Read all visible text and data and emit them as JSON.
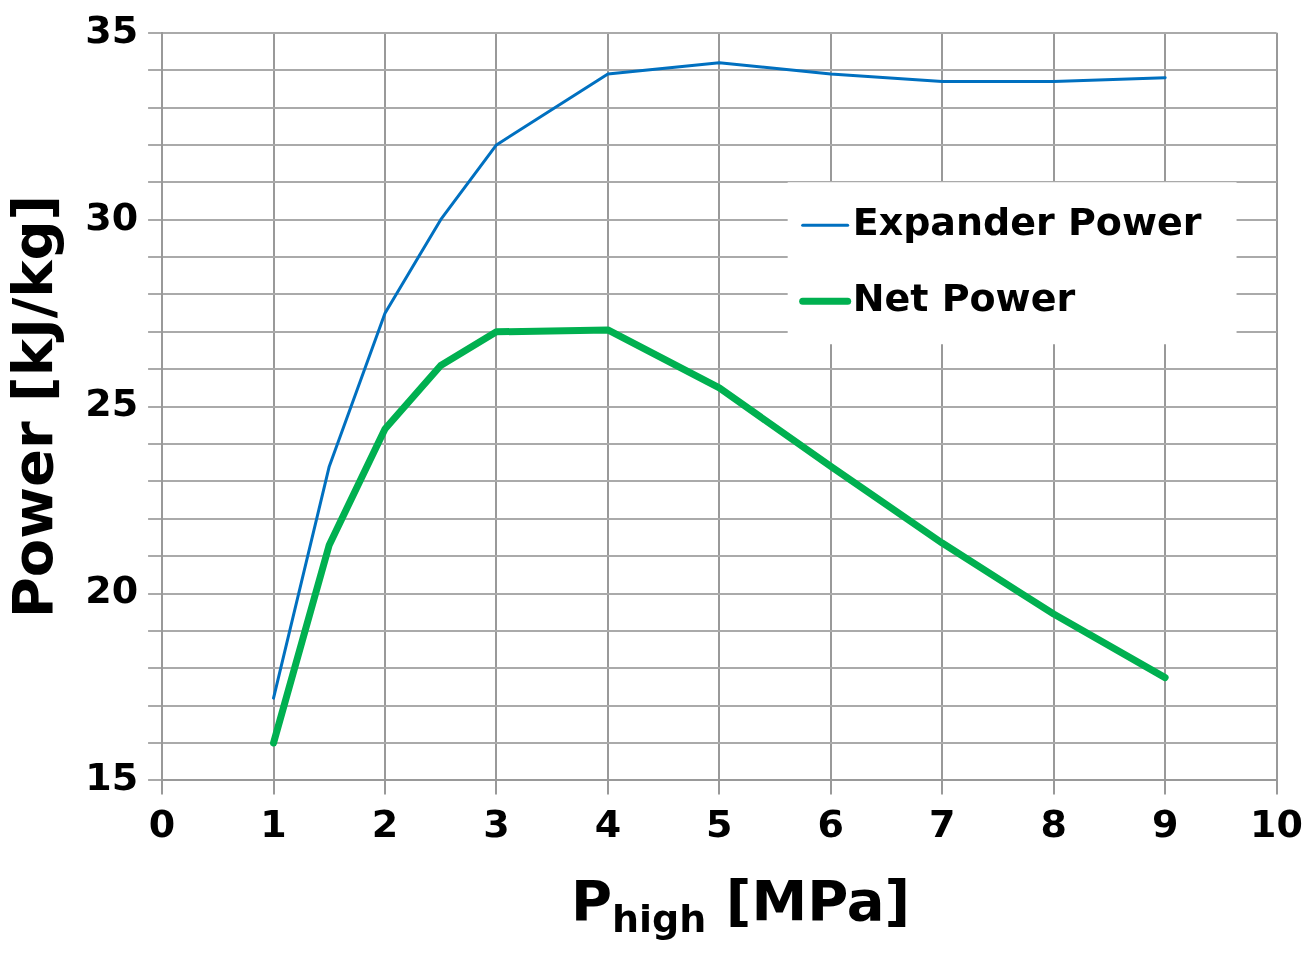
{
  "chart_data": {
    "type": "line",
    "xlabel": "P$_{high}$ [MPa]",
    "ylabel": "Power [kJ/kg]",
    "x": [
      1,
      1.5,
      2,
      2.5,
      3,
      4,
      5,
      6,
      7,
      8,
      9
    ],
    "series": [
      {
        "name": "Expander Power",
        "color": "#0070c0",
        "values": [
          17.2,
          23.4,
          27.5,
          30.0,
          32.0,
          33.9,
          34.2,
          33.9,
          33.7,
          33.7,
          33.8
        ]
      },
      {
        "name": "Net Power",
        "color": "#00b050",
        "values": [
          16.0,
          21.3,
          24.4,
          26.1,
          27.0,
          27.05,
          25.5,
          23.4,
          21.35,
          19.45,
          17.75
        ]
      }
    ],
    "xlim": [
      0,
      10
    ],
    "ylim": [
      15,
      35
    ],
    "xticks": [
      0,
      1,
      2,
      3,
      4,
      5,
      6,
      7,
      8,
      9,
      10
    ],
    "yticks": [
      15,
      {
        "value": 16,
        "label": null
      },
      {
        "value": 17,
        "label": null
      },
      {
        "value": 18,
        "label": null
      },
      {
        "value": 19,
        "label": null
      },
      20,
      {
        "value": 21,
        "label": null
      },
      {
        "value": 22,
        "label": null
      },
      {
        "value": 23,
        "label": null
      },
      {
        "value": 24,
        "label": null
      },
      25,
      {
        "value": 26,
        "label": null
      },
      {
        "value": 27,
        "label": null
      },
      {
        "value": 28,
        "label": null
      },
      {
        "value": 29,
        "label": null
      },
      30,
      {
        "value": 31,
        "label": null
      },
      {
        "value": 32,
        "label": null
      },
      {
        "value": 33,
        "label": null
      },
      {
        "value": 34,
        "label": null
      },
      35
    ],
    "grid": true,
    "legend": "right",
    "marker": "none",
    "line_style": "solid"
  }
}
